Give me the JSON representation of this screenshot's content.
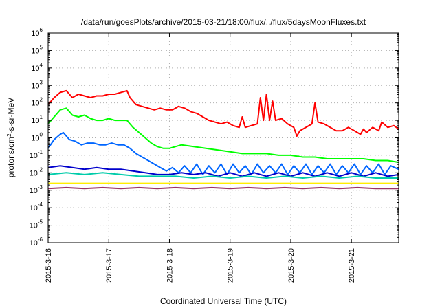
{
  "chart_data": {
    "type": "line",
    "title": "/data/run/goesPlots/archive/2015-03-21/18:00/flux/../flux/5daysMoonFluxes.txt",
    "xlabel": "Coordinated Universal Time (UTC)",
    "ylabel": "protons/cm2-s-sr-MeV",
    "ylabel_parts": {
      "pre": "protons/cm",
      "sup": "2",
      "post": "-s-sr-MeV"
    },
    "yscale": "log",
    "ylim": [
      -6,
      6
    ],
    "y_tick_exponents": [
      -6,
      -5,
      -4,
      -3,
      -2,
      -1,
      0,
      1,
      2,
      3,
      4,
      5,
      6
    ],
    "y_tick_base": "10",
    "xlim": [
      0,
      5.78
    ],
    "x_ticks": [
      {
        "pos": 0,
        "label": "2015-3-16"
      },
      {
        "pos": 1,
        "label": "2015-3-17"
      },
      {
        "pos": 2,
        "label": "2015-3-18"
      },
      {
        "pos": 3,
        "label": "2015-3-19"
      },
      {
        "pos": 4,
        "label": "2015-3-20"
      },
      {
        "pos": 5,
        "label": "2015-3-21"
      }
    ],
    "grid": true,
    "series": [
      {
        "color": "#ff0000",
        "points": [
          [
            0,
            1.9
          ],
          [
            0.1,
            2.3
          ],
          [
            0.2,
            2.6
          ],
          [
            0.3,
            2.7
          ],
          [
            0.4,
            2.3
          ],
          [
            0.5,
            2.5
          ],
          [
            0.6,
            2.4
          ],
          [
            0.7,
            2.3
          ],
          [
            0.8,
            2.4
          ],
          [
            0.9,
            2.4
          ],
          [
            1.0,
            2.5
          ],
          [
            1.1,
            2.5
          ],
          [
            1.2,
            2.6
          ],
          [
            1.3,
            2.7
          ],
          [
            1.35,
            2.3
          ],
          [
            1.45,
            1.9
          ],
          [
            1.55,
            1.8
          ],
          [
            1.65,
            1.7
          ],
          [
            1.75,
            1.6
          ],
          [
            1.85,
            1.7
          ],
          [
            1.95,
            1.6
          ],
          [
            2.05,
            1.6
          ],
          [
            2.15,
            1.8
          ],
          [
            2.25,
            1.7
          ],
          [
            2.35,
            1.5
          ],
          [
            2.45,
            1.4
          ],
          [
            2.55,
            1.2
          ],
          [
            2.65,
            1.0
          ],
          [
            2.75,
            0.9
          ],
          [
            2.85,
            0.8
          ],
          [
            2.95,
            0.9
          ],
          [
            3.05,
            0.7
          ],
          [
            3.15,
            0.6
          ],
          [
            3.2,
            1.2
          ],
          [
            3.25,
            0.6
          ],
          [
            3.35,
            0.7
          ],
          [
            3.45,
            0.8
          ],
          [
            3.5,
            2.3
          ],
          [
            3.55,
            1.0
          ],
          [
            3.6,
            2.5
          ],
          [
            3.65,
            1.0
          ],
          [
            3.7,
            2.1
          ],
          [
            3.75,
            1.0
          ],
          [
            3.85,
            1.1
          ],
          [
            3.95,
            0.8
          ],
          [
            4.05,
            0.6
          ],
          [
            4.1,
            0.1
          ],
          [
            4.15,
            0.4
          ],
          [
            4.25,
            0.6
          ],
          [
            4.35,
            0.8
          ],
          [
            4.4,
            2.0
          ],
          [
            4.45,
            0.9
          ],
          [
            4.55,
            0.8
          ],
          [
            4.65,
            0.6
          ],
          [
            4.75,
            0.4
          ],
          [
            4.85,
            0.4
          ],
          [
            4.95,
            0.6
          ],
          [
            5.05,
            0.4
          ],
          [
            5.15,
            0.2
          ],
          [
            5.2,
            0.5
          ],
          [
            5.25,
            0.3
          ],
          [
            5.35,
            0.6
          ],
          [
            5.45,
            0.4
          ],
          [
            5.5,
            0.9
          ],
          [
            5.6,
            0.6
          ],
          [
            5.7,
            0.7
          ],
          [
            5.78,
            0.5
          ]
        ]
      },
      {
        "color": "#00ff00",
        "points": [
          [
            0,
            0.8
          ],
          [
            0.1,
            1.2
          ],
          [
            0.2,
            1.6
          ],
          [
            0.3,
            1.7
          ],
          [
            0.4,
            1.3
          ],
          [
            0.5,
            1.2
          ],
          [
            0.6,
            1.3
          ],
          [
            0.7,
            1.1
          ],
          [
            0.8,
            1.0
          ],
          [
            0.9,
            1.0
          ],
          [
            1.0,
            1.1
          ],
          [
            1.1,
            1.0
          ],
          [
            1.2,
            1.0
          ],
          [
            1.3,
            1.0
          ],
          [
            1.4,
            0.6
          ],
          [
            1.5,
            0.3
          ],
          [
            1.6,
            0.0
          ],
          [
            1.7,
            -0.3
          ],
          [
            1.8,
            -0.5
          ],
          [
            1.9,
            -0.6
          ],
          [
            2.0,
            -0.6
          ],
          [
            2.2,
            -0.4
          ],
          [
            2.4,
            -0.5
          ],
          [
            2.6,
            -0.6
          ],
          [
            2.8,
            -0.7
          ],
          [
            3.0,
            -0.8
          ],
          [
            3.2,
            -0.9
          ],
          [
            3.4,
            -0.9
          ],
          [
            3.6,
            -0.9
          ],
          [
            3.8,
            -1.0
          ],
          [
            4.0,
            -1.0
          ],
          [
            4.2,
            -1.1
          ],
          [
            4.4,
            -1.1
          ],
          [
            4.6,
            -1.2
          ],
          [
            4.8,
            -1.2
          ],
          [
            5.0,
            -1.2
          ],
          [
            5.2,
            -1.2
          ],
          [
            5.4,
            -1.3
          ],
          [
            5.6,
            -1.3
          ],
          [
            5.78,
            -1.4
          ]
        ]
      },
      {
        "color": "#0066ff",
        "points": [
          [
            0,
            -0.6
          ],
          [
            0.1,
            -0.1
          ],
          [
            0.2,
            0.2
          ],
          [
            0.25,
            0.3
          ],
          [
            0.35,
            -0.1
          ],
          [
            0.45,
            -0.2
          ],
          [
            0.55,
            -0.4
          ],
          [
            0.65,
            -0.3
          ],
          [
            0.75,
            -0.3
          ],
          [
            0.85,
            -0.4
          ],
          [
            0.95,
            -0.4
          ],
          [
            1.05,
            -0.3
          ],
          [
            1.15,
            -0.4
          ],
          [
            1.25,
            -0.4
          ],
          [
            1.35,
            -0.6
          ],
          [
            1.45,
            -0.9
          ],
          [
            1.55,
            -1.1
          ],
          [
            1.65,
            -1.3
          ],
          [
            1.75,
            -1.5
          ],
          [
            1.85,
            -1.7
          ],
          [
            1.95,
            -1.9
          ],
          [
            2.05,
            -1.7
          ],
          [
            2.15,
            -2.0
          ],
          [
            2.25,
            -1.6
          ],
          [
            2.35,
            -2.0
          ],
          [
            2.45,
            -1.5
          ],
          [
            2.55,
            -2.1
          ],
          [
            2.65,
            -1.6
          ],
          [
            2.75,
            -2.0
          ],
          [
            2.85,
            -1.5
          ],
          [
            2.95,
            -2.1
          ],
          [
            3.05,
            -1.5
          ],
          [
            3.15,
            -2.0
          ],
          [
            3.25,
            -1.6
          ],
          [
            3.35,
            -2.1
          ],
          [
            3.45,
            -1.5
          ],
          [
            3.55,
            -2.0
          ],
          [
            3.65,
            -1.6
          ],
          [
            3.75,
            -2.0
          ],
          [
            3.85,
            -1.5
          ],
          [
            3.95,
            -2.1
          ],
          [
            4.05,
            -1.6
          ],
          [
            4.15,
            -2.0
          ],
          [
            4.25,
            -1.5
          ],
          [
            4.35,
            -2.1
          ],
          [
            4.45,
            -1.6
          ],
          [
            4.55,
            -2.0
          ],
          [
            4.65,
            -1.5
          ],
          [
            4.75,
            -2.1
          ],
          [
            4.85,
            -1.6
          ],
          [
            4.95,
            -2.0
          ],
          [
            5.05,
            -1.5
          ],
          [
            5.15,
            -2.1
          ],
          [
            5.25,
            -1.6
          ],
          [
            5.35,
            -2.0
          ],
          [
            5.45,
            -1.5
          ],
          [
            5.55,
            -2.1
          ],
          [
            5.65,
            -1.6
          ],
          [
            5.78,
            -1.8
          ]
        ]
      },
      {
        "color": "#0000cc",
        "points": [
          [
            0,
            -1.7
          ],
          [
            0.2,
            -1.6
          ],
          [
            0.4,
            -1.7
          ],
          [
            0.6,
            -1.8
          ],
          [
            0.8,
            -1.7
          ],
          [
            1.0,
            -1.8
          ],
          [
            1.2,
            -1.8
          ],
          [
            1.4,
            -1.9
          ],
          [
            1.6,
            -2.0
          ],
          [
            1.8,
            -2.1
          ],
          [
            2.0,
            -2.1
          ],
          [
            2.2,
            -2.0
          ],
          [
            2.4,
            -2.1
          ],
          [
            2.6,
            -2.0
          ],
          [
            2.8,
            -2.2
          ],
          [
            3.0,
            -2.0
          ],
          [
            3.2,
            -2.2
          ],
          [
            3.4,
            -2.0
          ],
          [
            3.6,
            -2.2
          ],
          [
            3.8,
            -2.0
          ],
          [
            4.0,
            -2.2
          ],
          [
            4.2,
            -2.0
          ],
          [
            4.4,
            -2.2
          ],
          [
            4.6,
            -2.0
          ],
          [
            4.8,
            -2.2
          ],
          [
            5.0,
            -2.0
          ],
          [
            5.2,
            -2.2
          ],
          [
            5.4,
            -2.0
          ],
          [
            5.6,
            -2.2
          ],
          [
            5.78,
            -2.1
          ]
        ]
      },
      {
        "color": "#00ccaa",
        "points": [
          [
            0,
            -2.1
          ],
          [
            0.3,
            -2.0
          ],
          [
            0.6,
            -2.1
          ],
          [
            0.9,
            -2.0
          ],
          [
            1.2,
            -2.1
          ],
          [
            1.5,
            -2.2
          ],
          [
            1.8,
            -2.2
          ],
          [
            2.1,
            -2.2
          ],
          [
            2.4,
            -2.3
          ],
          [
            2.7,
            -2.2
          ],
          [
            3.0,
            -2.3
          ],
          [
            3.3,
            -2.2
          ],
          [
            3.6,
            -2.3
          ],
          [
            3.9,
            -2.2
          ],
          [
            4.2,
            -2.3
          ],
          [
            4.5,
            -2.2
          ],
          [
            4.8,
            -2.3
          ],
          [
            5.1,
            -2.2
          ],
          [
            5.4,
            -2.3
          ],
          [
            5.78,
            -2.3
          ]
        ]
      },
      {
        "color": "#ffee00",
        "points": [
          [
            0,
            -2.6
          ],
          [
            0.5,
            -2.6
          ],
          [
            1.0,
            -2.6
          ],
          [
            1.5,
            -2.6
          ],
          [
            2.0,
            -2.6
          ],
          [
            2.5,
            -2.6
          ],
          [
            3.0,
            -2.6
          ],
          [
            3.5,
            -2.6
          ],
          [
            4.0,
            -2.6
          ],
          [
            4.5,
            -2.6
          ],
          [
            5.0,
            -2.6
          ],
          [
            5.5,
            -2.6
          ],
          [
            5.78,
            -2.6
          ]
        ]
      },
      {
        "color": "#993366",
        "points": [
          [
            0,
            -2.9
          ],
          [
            0.3,
            -2.85
          ],
          [
            0.6,
            -2.9
          ],
          [
            0.9,
            -2.85
          ],
          [
            1.2,
            -2.9
          ],
          [
            1.5,
            -2.85
          ],
          [
            1.8,
            -2.9
          ],
          [
            2.1,
            -2.85
          ],
          [
            2.4,
            -2.9
          ],
          [
            2.7,
            -2.85
          ],
          [
            3.0,
            -2.9
          ],
          [
            3.3,
            -2.85
          ],
          [
            3.6,
            -2.9
          ],
          [
            3.9,
            -2.85
          ],
          [
            4.2,
            -2.9
          ],
          [
            4.5,
            -2.85
          ],
          [
            4.8,
            -2.9
          ],
          [
            5.1,
            -2.85
          ],
          [
            5.4,
            -2.9
          ],
          [
            5.78,
            -2.9
          ]
        ]
      }
    ]
  }
}
